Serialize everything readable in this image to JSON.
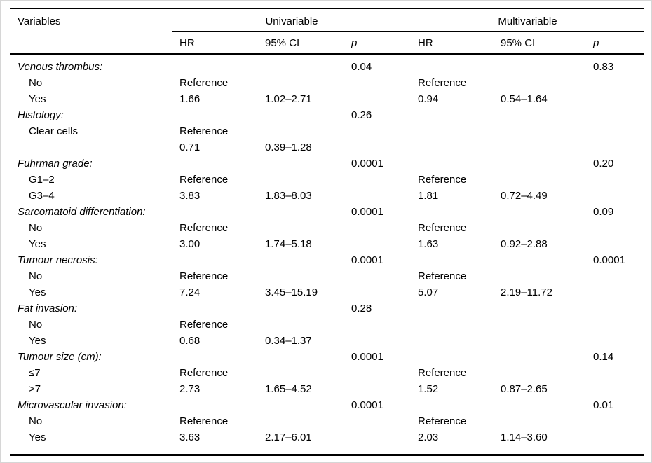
{
  "page": {
    "background": "#ffffff",
    "rule_color": "#000000",
    "text_color": "#000000",
    "frame_border_color": "#d6d6d6"
  },
  "table": {
    "header": {
      "variables": "Variables",
      "group_univariable": "Univariable",
      "group_multivariable": "Multivariable",
      "sub_headers": [
        "HR",
        "95% CI",
        "p",
        "HR",
        "95% CI",
        "p"
      ]
    },
    "column_keys": [
      "uni-hr",
      "uni-ci",
      "uni-p",
      "multi-hr",
      "multi-ci",
      "multi-p"
    ],
    "rows": [
      {
        "type": "category",
        "label": "Venous thrombus:",
        "cells": [
          "",
          "",
          "0.04",
          "",
          "",
          "0.83"
        ]
      },
      {
        "type": "item",
        "label": "No",
        "cells": [
          "Reference",
          "",
          "",
          "Reference",
          "",
          ""
        ]
      },
      {
        "type": "item",
        "label": "Yes",
        "cells": [
          "1.66",
          "1.02–2.71",
          "",
          "0.94",
          "0.54–1.64",
          ""
        ]
      },
      {
        "type": "category",
        "label": "Histology:",
        "cells": [
          "",
          "",
          "0.26",
          "",
          "",
          ""
        ]
      },
      {
        "type": "item",
        "label": "Clear cells",
        "cells": [
          "Reference",
          "",
          "",
          "",
          "",
          ""
        ]
      },
      {
        "type": "item",
        "label": "",
        "cells": [
          "0.71",
          "0.39–1.28",
          "",
          "",
          "",
          ""
        ]
      },
      {
        "type": "category",
        "label": "Fuhrman grade:",
        "cells": [
          "",
          "",
          "0.0001",
          "",
          "",
          "0.20"
        ]
      },
      {
        "type": "item",
        "label": "G1–2",
        "cells": [
          "Reference",
          "",
          "",
          "Reference",
          "",
          ""
        ]
      },
      {
        "type": "item",
        "label": "G3–4",
        "cells": [
          "3.83",
          "1.83–8.03",
          "",
          "1.81",
          "0.72–4.49",
          ""
        ]
      },
      {
        "type": "category",
        "label": "Sarcomatoid differentiation:",
        "cells": [
          "",
          "",
          "0.0001",
          "",
          "",
          "0.09"
        ]
      },
      {
        "type": "item",
        "label": "No",
        "cells": [
          "Reference",
          "",
          "",
          "Reference",
          "",
          ""
        ]
      },
      {
        "type": "item",
        "label": "Yes",
        "cells": [
          "3.00",
          "1.74–5.18",
          "",
          "1.63",
          "0.92–2.88",
          ""
        ]
      },
      {
        "type": "category",
        "label": "Tumour necrosis:",
        "cells": [
          "",
          "",
          "0.0001",
          "",
          "",
          "0.0001"
        ]
      },
      {
        "type": "item",
        "label": "No",
        "cells": [
          "Reference",
          "",
          "",
          "Reference",
          "",
          ""
        ]
      },
      {
        "type": "item",
        "label": "Yes",
        "cells": [
          "7.24",
          "3.45–15.19",
          "",
          "5.07",
          "2.19–11.72",
          ""
        ]
      },
      {
        "type": "category",
        "label": "Fat invasion:",
        "cells": [
          "",
          "",
          "0.28",
          "",
          "",
          ""
        ]
      },
      {
        "type": "item",
        "label": "No",
        "cells": [
          "Reference",
          "",
          "",
          "",
          "",
          ""
        ]
      },
      {
        "type": "item",
        "label": "Yes",
        "cells": [
          "0.68",
          "0.34–1.37",
          "",
          "",
          "",
          ""
        ]
      },
      {
        "type": "category",
        "label": "Tumour size (cm):",
        "cells": [
          "",
          "",
          "0.0001",
          "",
          "",
          "0.14"
        ]
      },
      {
        "type": "item",
        "label": "≤7",
        "cells": [
          "Reference",
          "",
          "",
          "Reference",
          "",
          ""
        ]
      },
      {
        "type": "item",
        "label": ">7",
        "cells": [
          "2.73",
          "1.65–4.52",
          "",
          "1.52",
          "0.87–2.65",
          ""
        ]
      },
      {
        "type": "category",
        "label": "Microvascular invasion:",
        "cells": [
          "",
          "",
          "0.0001",
          "",
          "",
          "0.01"
        ]
      },
      {
        "type": "item",
        "label": "No",
        "cells": [
          "Reference",
          "",
          "",
          "Reference",
          "",
          ""
        ]
      },
      {
        "type": "item",
        "label": "Yes",
        "cells": [
          "3.63",
          "2.17–6.01",
          "",
          "2.03",
          "1.14–3.60",
          ""
        ]
      }
    ]
  }
}
